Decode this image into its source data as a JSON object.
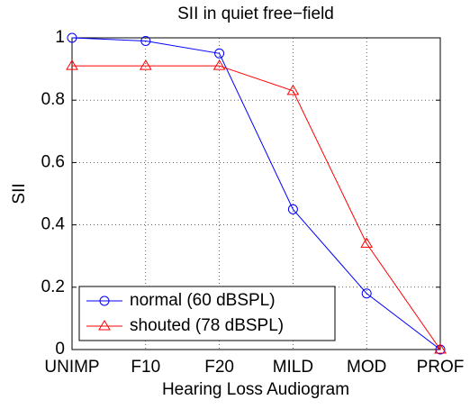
{
  "chart_data": {
    "type": "line",
    "title": "SII in quiet free−field",
    "x_label": "Hearing Loss Audiogram",
    "y_label": "SII",
    "categories": [
      "UNIMP",
      "F10",
      "F20",
      "MILD",
      "MOD",
      "PROF"
    ],
    "series": [
      {
        "name": "normal (60 dBSPL)",
        "color": "#0000ff",
        "marker": "circle",
        "values": [
          1.0,
          0.99,
          0.95,
          0.45,
          0.18,
          0.0
        ]
      },
      {
        "name": "shouted (78 dBSPL)",
        "color": "#ff0000",
        "marker": "triangle",
        "values": [
          0.91,
          0.91,
          0.91,
          0.83,
          0.34,
          0.0
        ]
      }
    ],
    "ylim": [
      0,
      1
    ],
    "yticks": [
      0,
      0.2,
      0.4,
      0.6,
      0.8,
      1
    ],
    "grid": true,
    "legend": "lower left"
  }
}
